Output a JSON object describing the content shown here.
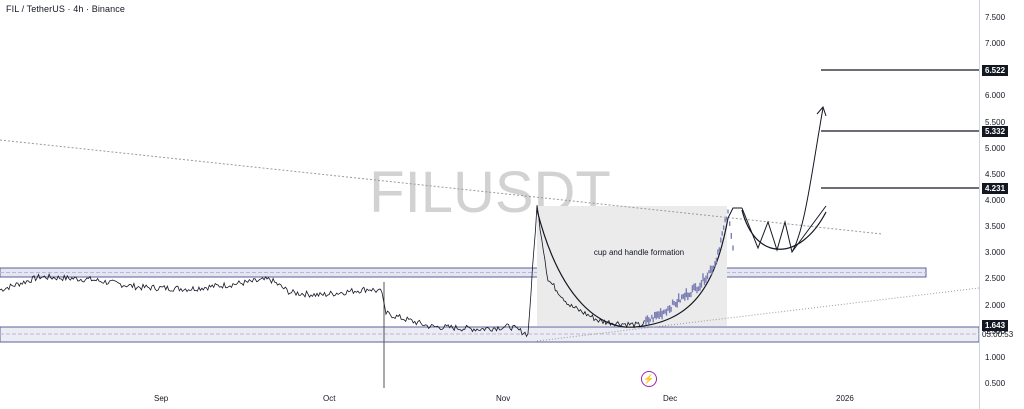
{
  "header": {
    "title": "FIL / TetherUS · 4h · Binance"
  },
  "watermark": "FILUSDT",
  "annotation": "cup and handle formation",
  "markers": {
    "current_price": "1.643",
    "countdown": "03:00:53",
    "targets": [
      "6.522",
      "5.332",
      "4.231"
    ]
  },
  "colors": {
    "price_line": "#131722",
    "candles": "#7b7fb5",
    "zone_fill": "#e6e6f2",
    "zone_border": "#5b5f9a",
    "marker_bg": "#131722",
    "accent": "#9c27b0"
  },
  "chart_data": {
    "type": "line",
    "title": "FIL / TetherUS · 4h · Binance",
    "ylim": [
      0.5,
      7.5
    ],
    "y_ticks": [
      "7.500",
      "7.000",
      "6.500",
      "6.000",
      "5.500",
      "5.000",
      "4.500",
      "4.000",
      "3.500",
      "3.000",
      "2.500",
      "2.000",
      "1.500",
      "1.000",
      "0.500"
    ],
    "x_ticks": [
      "Sep",
      "Oct",
      "Nov",
      "Dec",
      "2026"
    ],
    "series": [
      {
        "values_note": "",
        "x": [
          "Aug 13",
          "Aug 20",
          "Aug 27",
          "Sep 3",
          "Sep 10",
          "Sep 17",
          "Sep 24",
          "Sep 28",
          "Oct 1",
          "Oct 8",
          "Oct 10",
          "Oct 11",
          "Oct 20",
          "Oct 27",
          "Nov 1",
          "Nov 3",
          "Nov 5",
          "Nov 8",
          "Nov 12",
          "Nov 18",
          "Nov 24",
          "Dec 1",
          "Dec 8",
          "Dec 12",
          "Dec 16",
          "Dec 18"
        ],
        "values": [
          2.3,
          2.55,
          2.5,
          2.35,
          2.32,
          2.4,
          2.5,
          2.25,
          2.2,
          2.32,
          2.25,
          1.85,
          1.6,
          1.55,
          1.6,
          1.45,
          3.9,
          2.5,
          2.0,
          1.7,
          1.62,
          1.9,
          2.4,
          2.8,
          3.8,
          3.1
        ]
      }
    ],
    "levels": [
      6.522,
      5.332,
      4.231
    ],
    "zones": [
      [
        2.6,
        2.78
      ],
      [
        1.38,
        1.72
      ]
    ],
    "cup_top": 3.9,
    "projection_peak": 5.8
  }
}
